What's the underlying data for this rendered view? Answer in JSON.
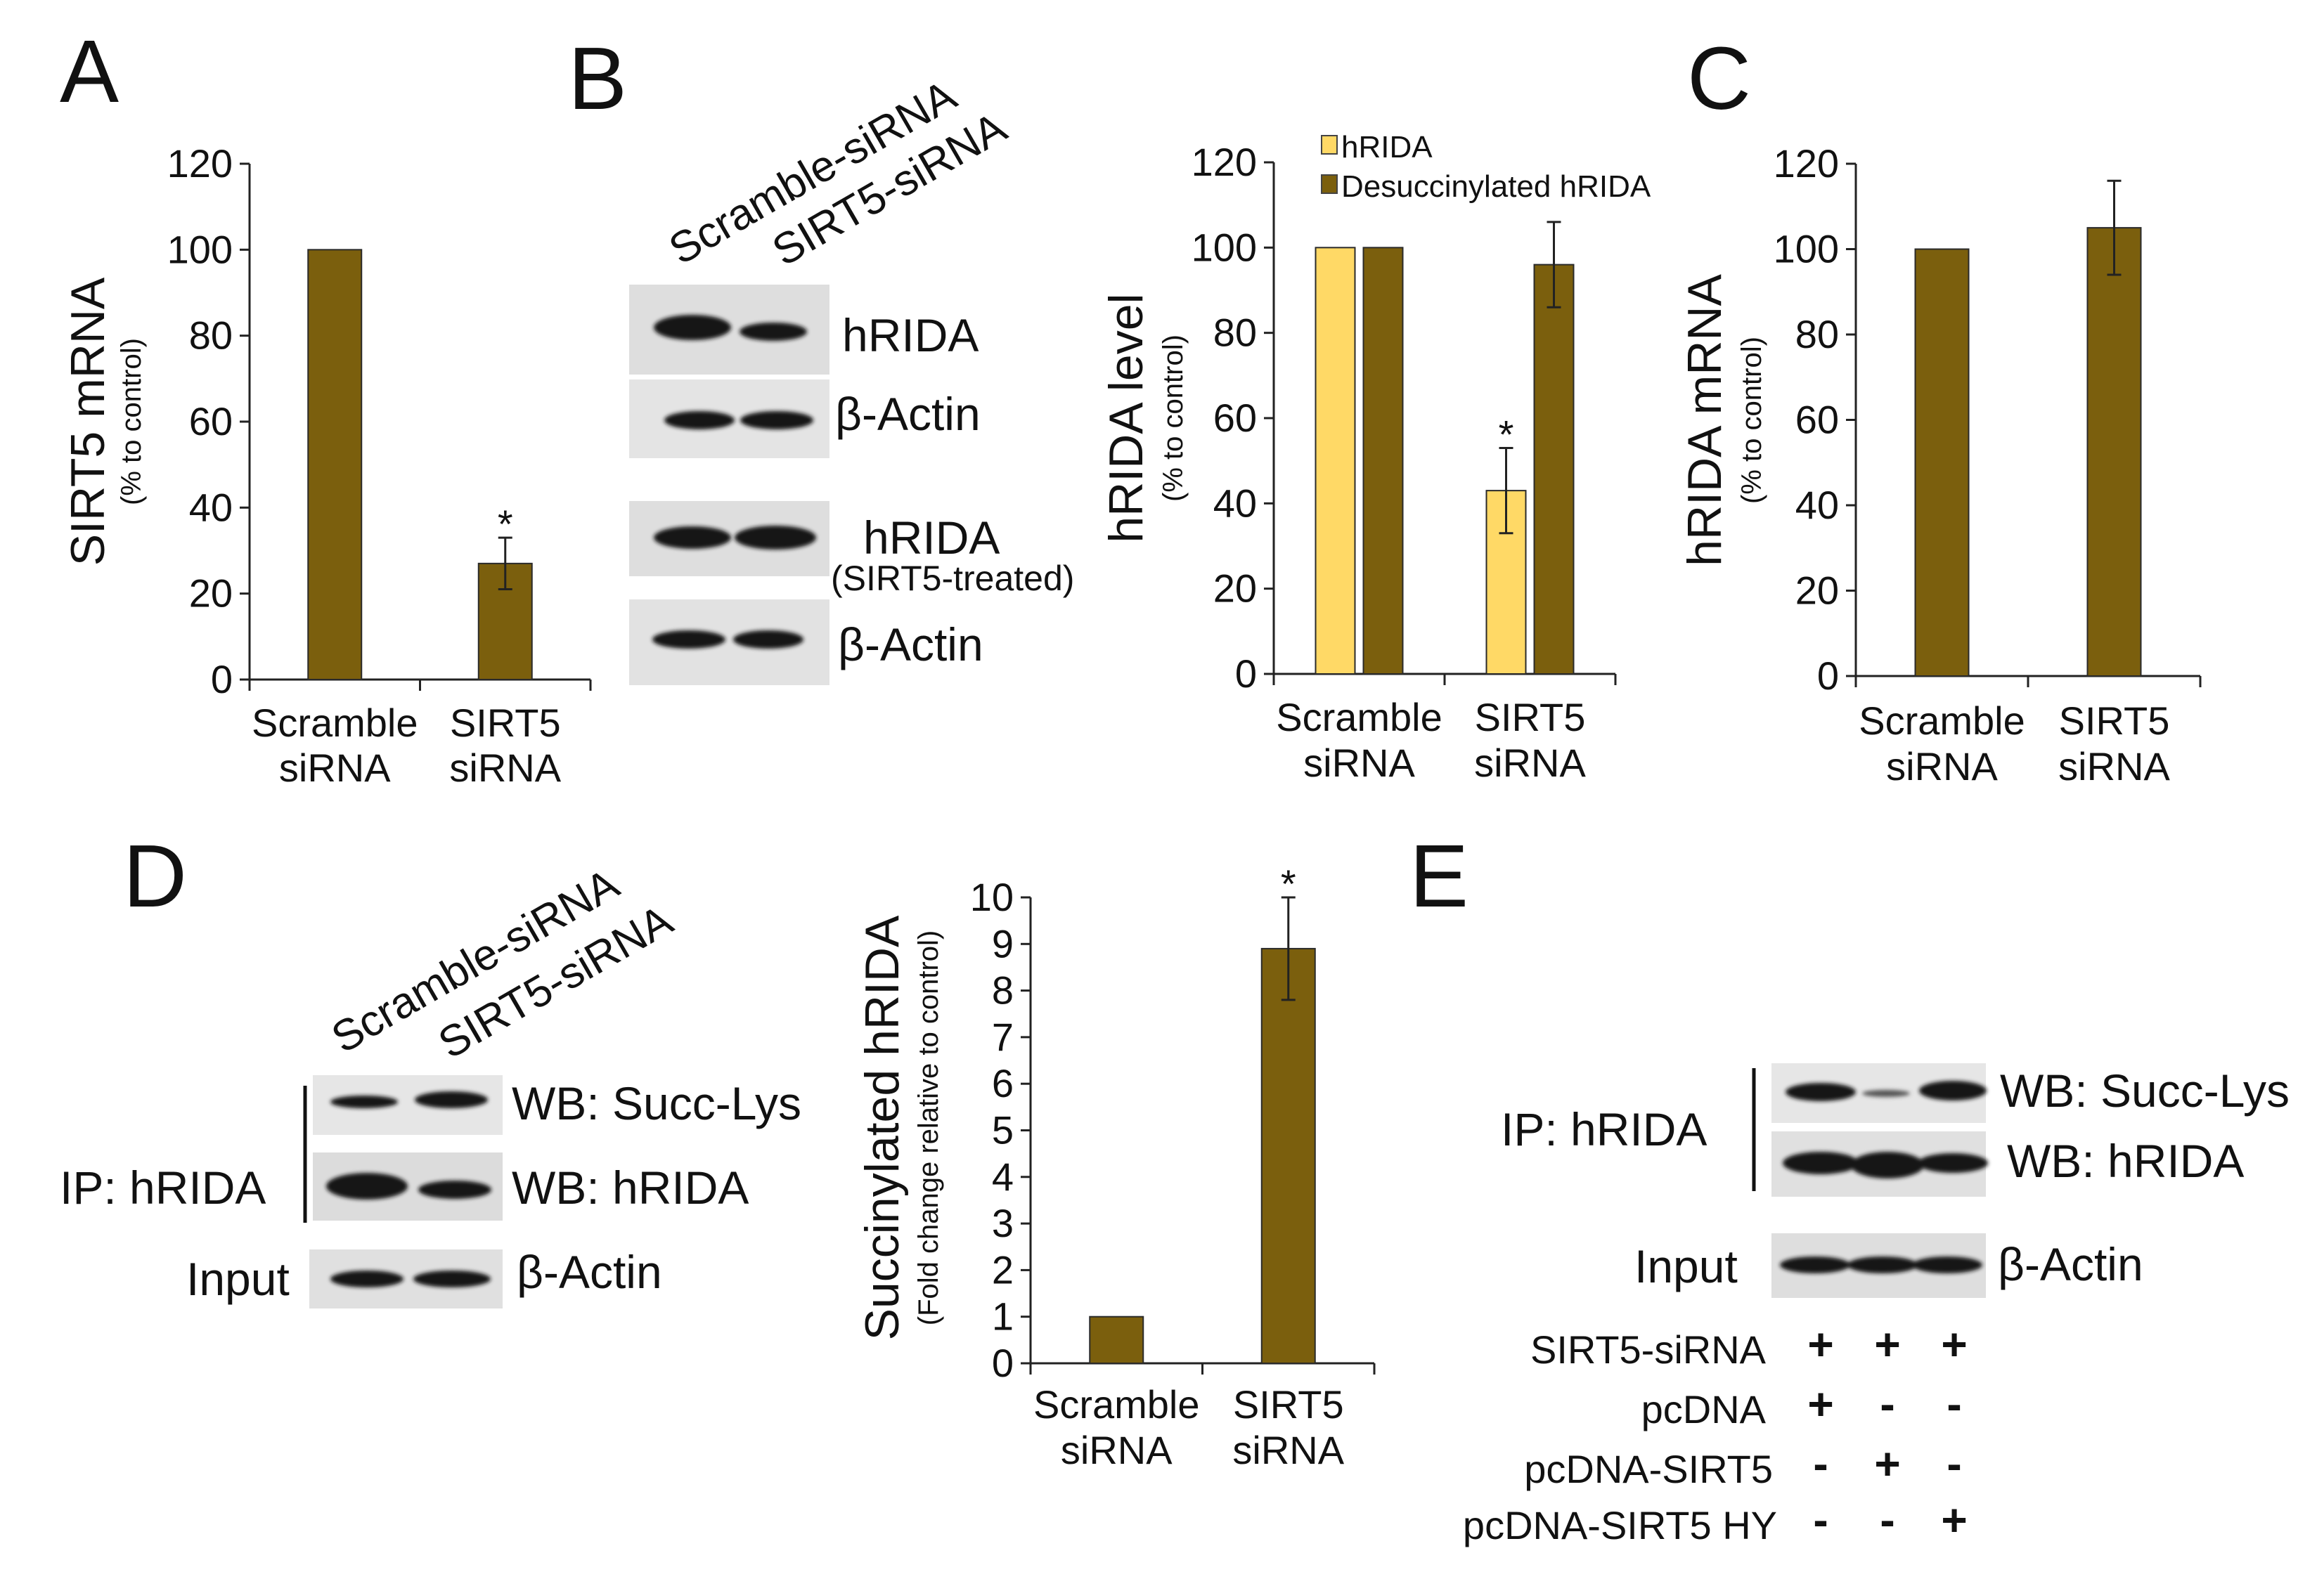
{
  "panels": {
    "A": "A",
    "B": "B",
    "C": "C",
    "D": "D",
    "E": "E"
  },
  "colors": {
    "dark_bar": "#7B5F0D",
    "light_bar": "#FFD966",
    "axis": "#222222",
    "band": "#161616",
    "membrane": "#DEDEDE"
  },
  "chart_data": [
    {
      "panel": "A",
      "type": "bar",
      "ylabel": "SIRT5 mRNA",
      "ylabel_sub": "(% to control)",
      "ylim": [
        0,
        120
      ],
      "yticks": [
        0,
        20,
        40,
        60,
        80,
        100,
        120
      ],
      "categories": [
        [
          "Scramble",
          "siRNA"
        ],
        [
          "SIRT5",
          "siRNA"
        ]
      ],
      "series": [
        {
          "values": [
            100,
            27
          ],
          "errors": [
            0,
            6
          ],
          "color": "#7B5F0D"
        }
      ],
      "annotations": [
        {
          "category": 1,
          "text": "*"
        }
      ]
    },
    {
      "panel": "B",
      "type": "bar",
      "ylabel": "hRIDA level",
      "ylabel_sub": "(% to control)",
      "ylim": [
        0,
        120
      ],
      "yticks": [
        0,
        20,
        40,
        60,
        80,
        100,
        120
      ],
      "categories": [
        [
          "Scramble",
          "siRNA"
        ],
        [
          "SIRT5",
          "siRNA"
        ]
      ],
      "legend_position": "top",
      "series": [
        {
          "name": "hRIDA",
          "values": [
            100,
            43
          ],
          "errors": [
            0,
            10
          ],
          "color": "#FFD966"
        },
        {
          "name": "Desuccinylated hRIDA",
          "values": [
            100,
            96
          ],
          "errors": [
            0,
            10
          ],
          "color": "#7B5F0D"
        }
      ],
      "annotations": [
        {
          "category": 1,
          "series": 0,
          "text": "*"
        }
      ]
    },
    {
      "panel": "C",
      "type": "bar",
      "ylabel": "hRIDA mRNA",
      "ylabel_sub": "(% to control)",
      "ylim": [
        0,
        120
      ],
      "yticks": [
        0,
        20,
        40,
        60,
        80,
        100,
        120
      ],
      "categories": [
        [
          "Scramble",
          "siRNA"
        ],
        [
          "SIRT5",
          "siRNA"
        ]
      ],
      "series": [
        {
          "values": [
            100,
            105
          ],
          "errors": [
            0,
            11
          ],
          "color": "#7B5F0D"
        }
      ],
      "annotations": []
    },
    {
      "panel": "D",
      "type": "bar",
      "ylabel": "Succinylated hRIDA",
      "ylabel_sub": "(Fold change relative to control)",
      "ylim": [
        0,
        10
      ],
      "yticks": [
        0,
        1,
        2,
        3,
        4,
        5,
        6,
        7,
        8,
        9,
        10
      ],
      "categories": [
        [
          "Scramble",
          "siRNA"
        ],
        [
          "SIRT5",
          "siRNA"
        ]
      ],
      "series": [
        {
          "values": [
            1,
            8.9
          ],
          "errors": [
            0,
            1.1
          ],
          "color": "#7B5F0D"
        }
      ],
      "annotations": [
        {
          "category": 1,
          "text": "*"
        }
      ]
    }
  ],
  "blots": {
    "B": {
      "lanes": [
        "Scramble-siRNA",
        "SIRT5-siRNA"
      ],
      "rows": [
        "hRIDA",
        "β-Actin",
        "hRIDA",
        "β-Actin"
      ],
      "treated_note": "(SIRT5-treated)"
    },
    "D": {
      "lanes": [
        "Scramble-siRNA",
        "SIRT5-siRNA"
      ],
      "ip_label": "IP: hRIDA",
      "input_label": "Input",
      "rows": [
        "WB: Succ-Lys",
        "WB: hRIDA",
        "β-Actin"
      ]
    },
    "E": {
      "ip_label": "IP: hRIDA",
      "input_label": "Input",
      "rows": [
        "WB: Succ-Lys",
        "WB: hRIDA",
        "β-Actin"
      ],
      "conditions": [
        {
          "label": "SIRT5-siRNA",
          "signs": [
            "+",
            "+",
            "+"
          ]
        },
        {
          "label": "pcDNA",
          "signs": [
            "+",
            "-",
            "-"
          ]
        },
        {
          "label": "pcDNA-SIRT5",
          "signs": [
            "-",
            "+",
            "-"
          ]
        },
        {
          "label": "pcDNA-SIRT5 HY",
          "signs": [
            "-",
            "-",
            "+"
          ]
        }
      ]
    }
  }
}
